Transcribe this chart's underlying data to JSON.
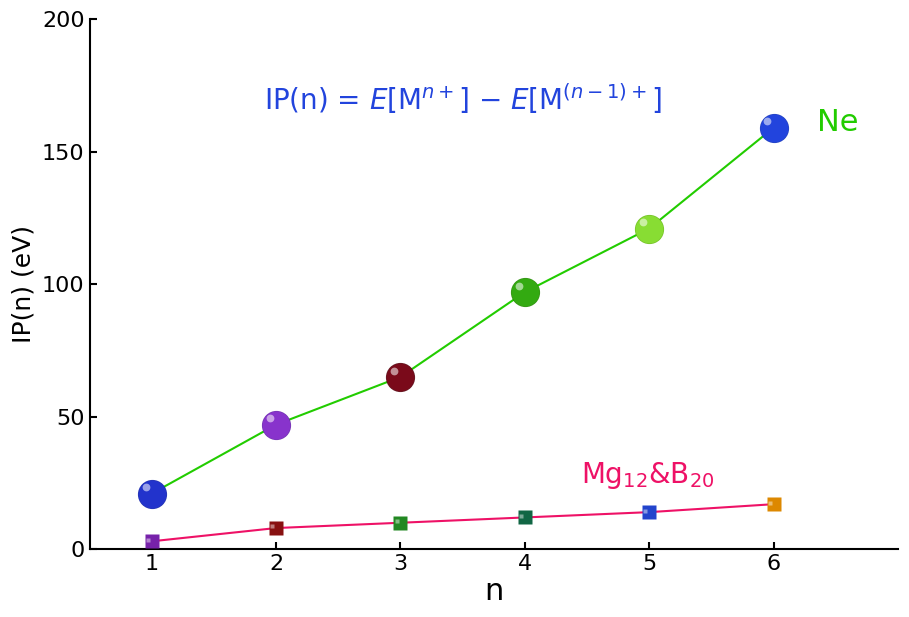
{
  "n_values": [
    1,
    2,
    3,
    4,
    5,
    6
  ],
  "ne_ip": [
    21,
    47,
    65,
    97,
    121,
    159
  ],
  "mg_ip": [
    3,
    8,
    10,
    12,
    14,
    17
  ],
  "ne_circle_colors": [
    "#2233cc",
    "#8833cc",
    "#7a0a1a",
    "#33aa11",
    "#88dd33",
    "#2244dd"
  ],
  "ne_circle_edge_colors": [
    "#1122aa",
    "#6622aa",
    "#550510",
    "#228800",
    "#66bb11",
    "#1133bb"
  ],
  "mg_square_colors": [
    "#7722aa",
    "#881111",
    "#228822",
    "#116644",
    "#2244cc",
    "#dd8800"
  ],
  "ne_line_color": "#22cc00",
  "mg_line_color": "#ee1166",
  "ylabel": "IP(n) (eV)",
  "xlabel": "n",
  "ylim": [
    0,
    200
  ],
  "xlim": [
    0.5,
    7.0
  ],
  "yticks": [
    0,
    50,
    100,
    150,
    200
  ],
  "xticks": [
    1,
    2,
    3,
    4,
    5,
    6
  ],
  "ne_label": "Ne",
  "ne_label_color": "#22cc00",
  "mg_label_color": "#ee1166",
  "formula_color": "#2244dd",
  "bg_color": "#ffffff",
  "marker_size_circle": 20,
  "marker_size_square": 10,
  "line_width": 1.5
}
